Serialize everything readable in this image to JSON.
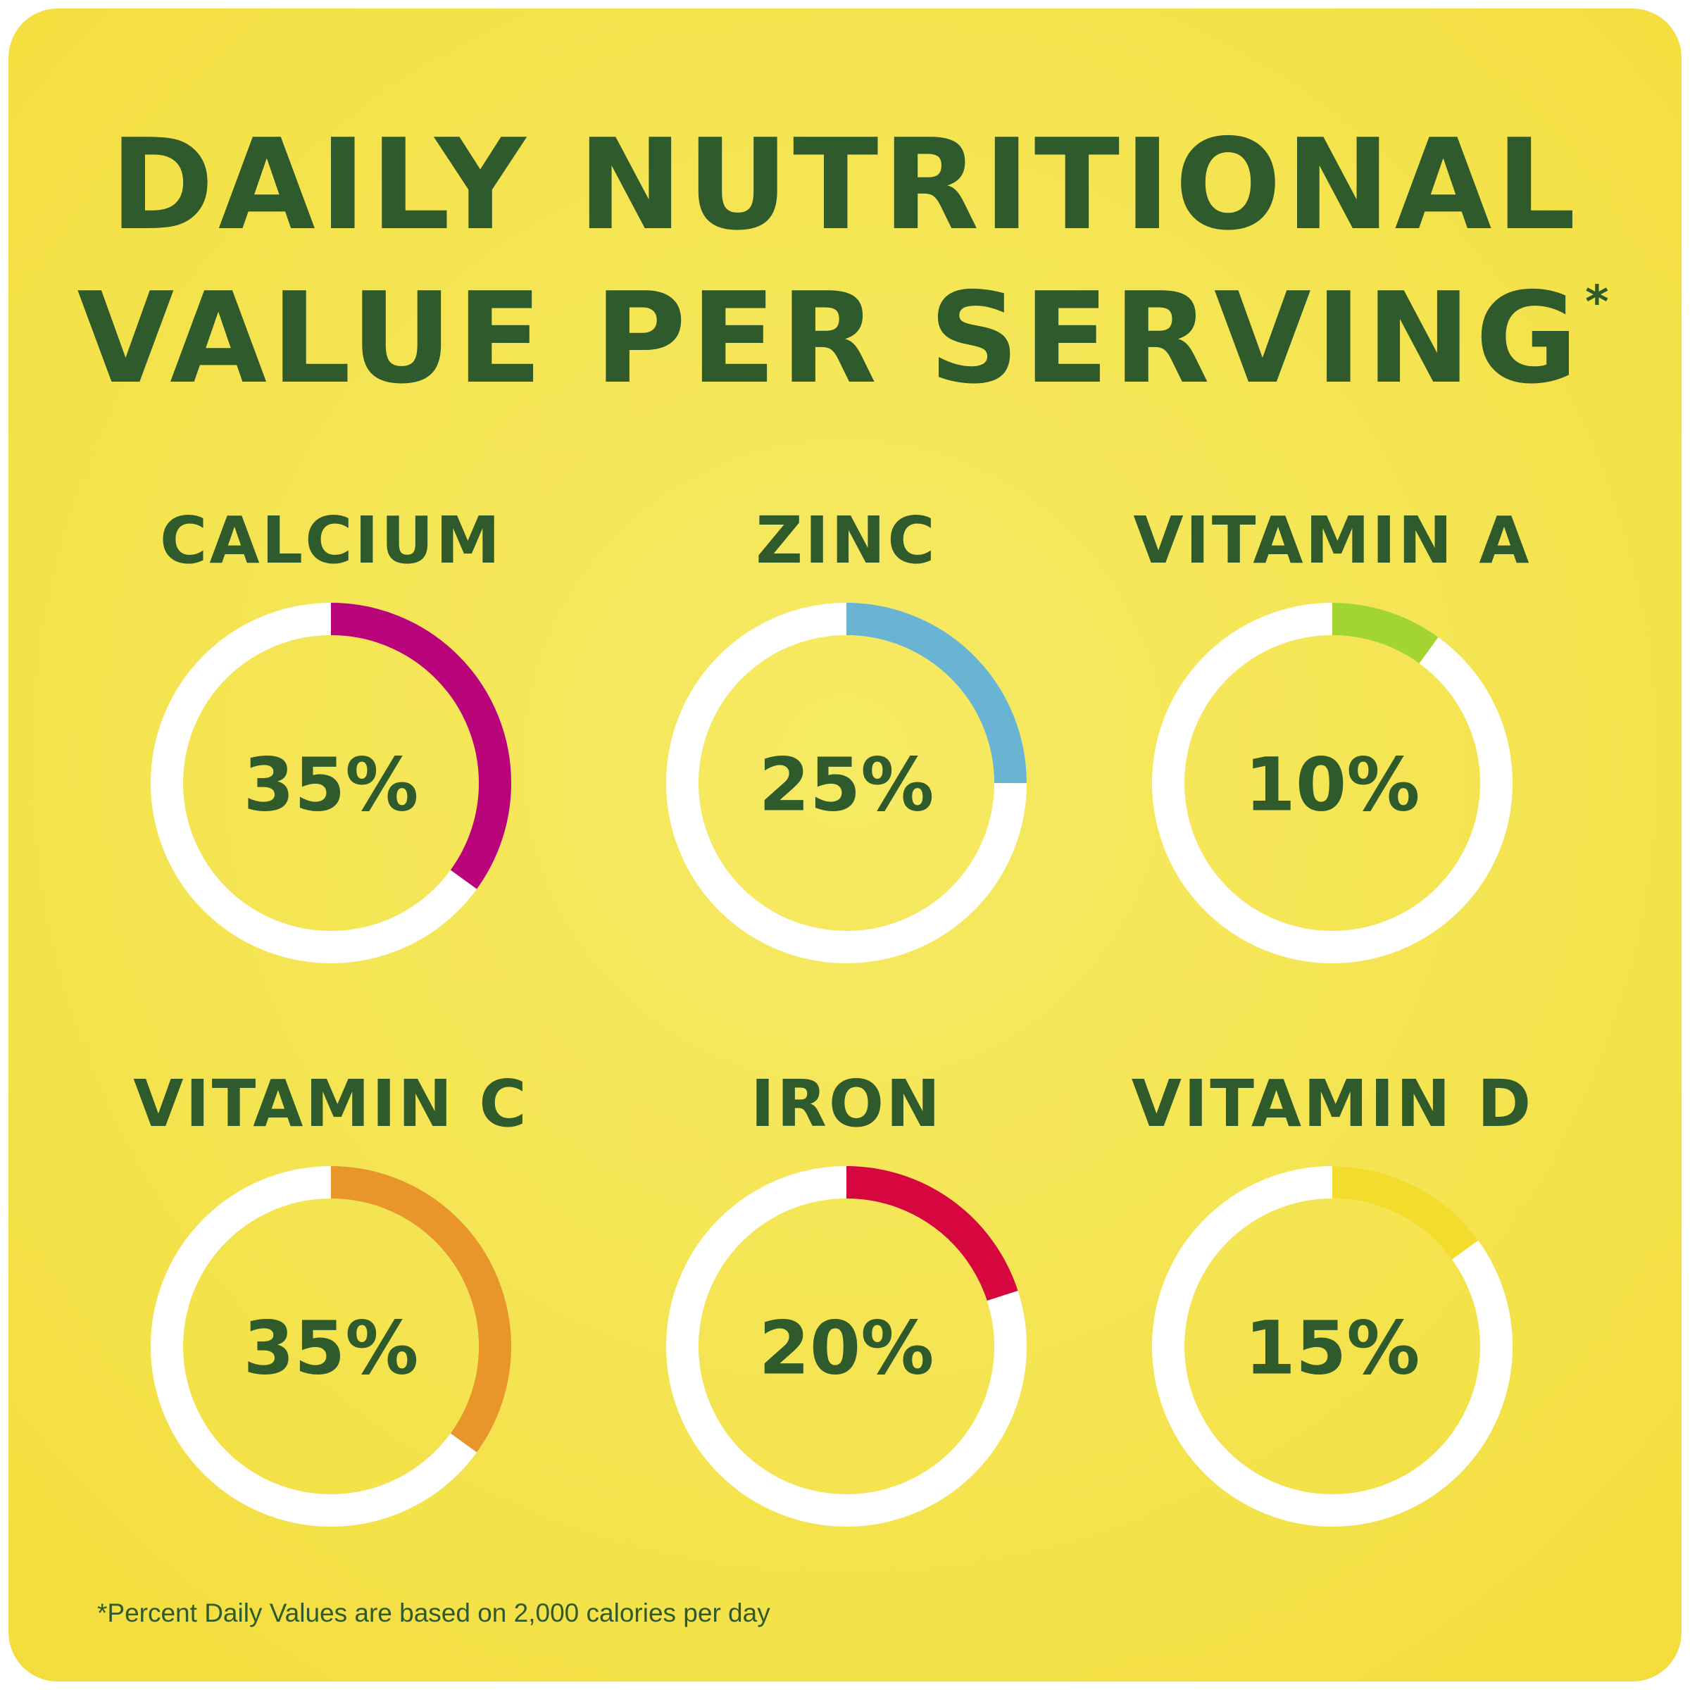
{
  "header": {
    "title_line1": "DAILY NUTRITIONAL",
    "title_line2": "VALUE PER SERVING",
    "title_marker": "*"
  },
  "footnote": "*Percent Daily Values are based on 2,000 calories per day",
  "colors": {
    "background": "#f5e451",
    "text": "#2f5a2c",
    "ring_track": "#ffffff"
  },
  "chart_data": {
    "type": "pie",
    "style": "donut-grid",
    "unit": "%",
    "items": [
      {
        "name": "CALCIUM",
        "value": 35,
        "label": "35%",
        "color": "#b8037a"
      },
      {
        "name": "ZINC",
        "value": 25,
        "label": "25%",
        "color": "#6ab4d3"
      },
      {
        "name": "VITAMIN A",
        "value": 10,
        "label": "10%",
        "color": "#a2d52f"
      },
      {
        "name": "VITAMIN C",
        "value": 35,
        "label": "35%",
        "color": "#e8962a"
      },
      {
        "name": "IRON",
        "value": 20,
        "label": "20%",
        "color": "#d6063f"
      },
      {
        "name": "VITAMIN D",
        "value": 15,
        "label": "15%",
        "color": "#f4dc2c"
      }
    ]
  }
}
